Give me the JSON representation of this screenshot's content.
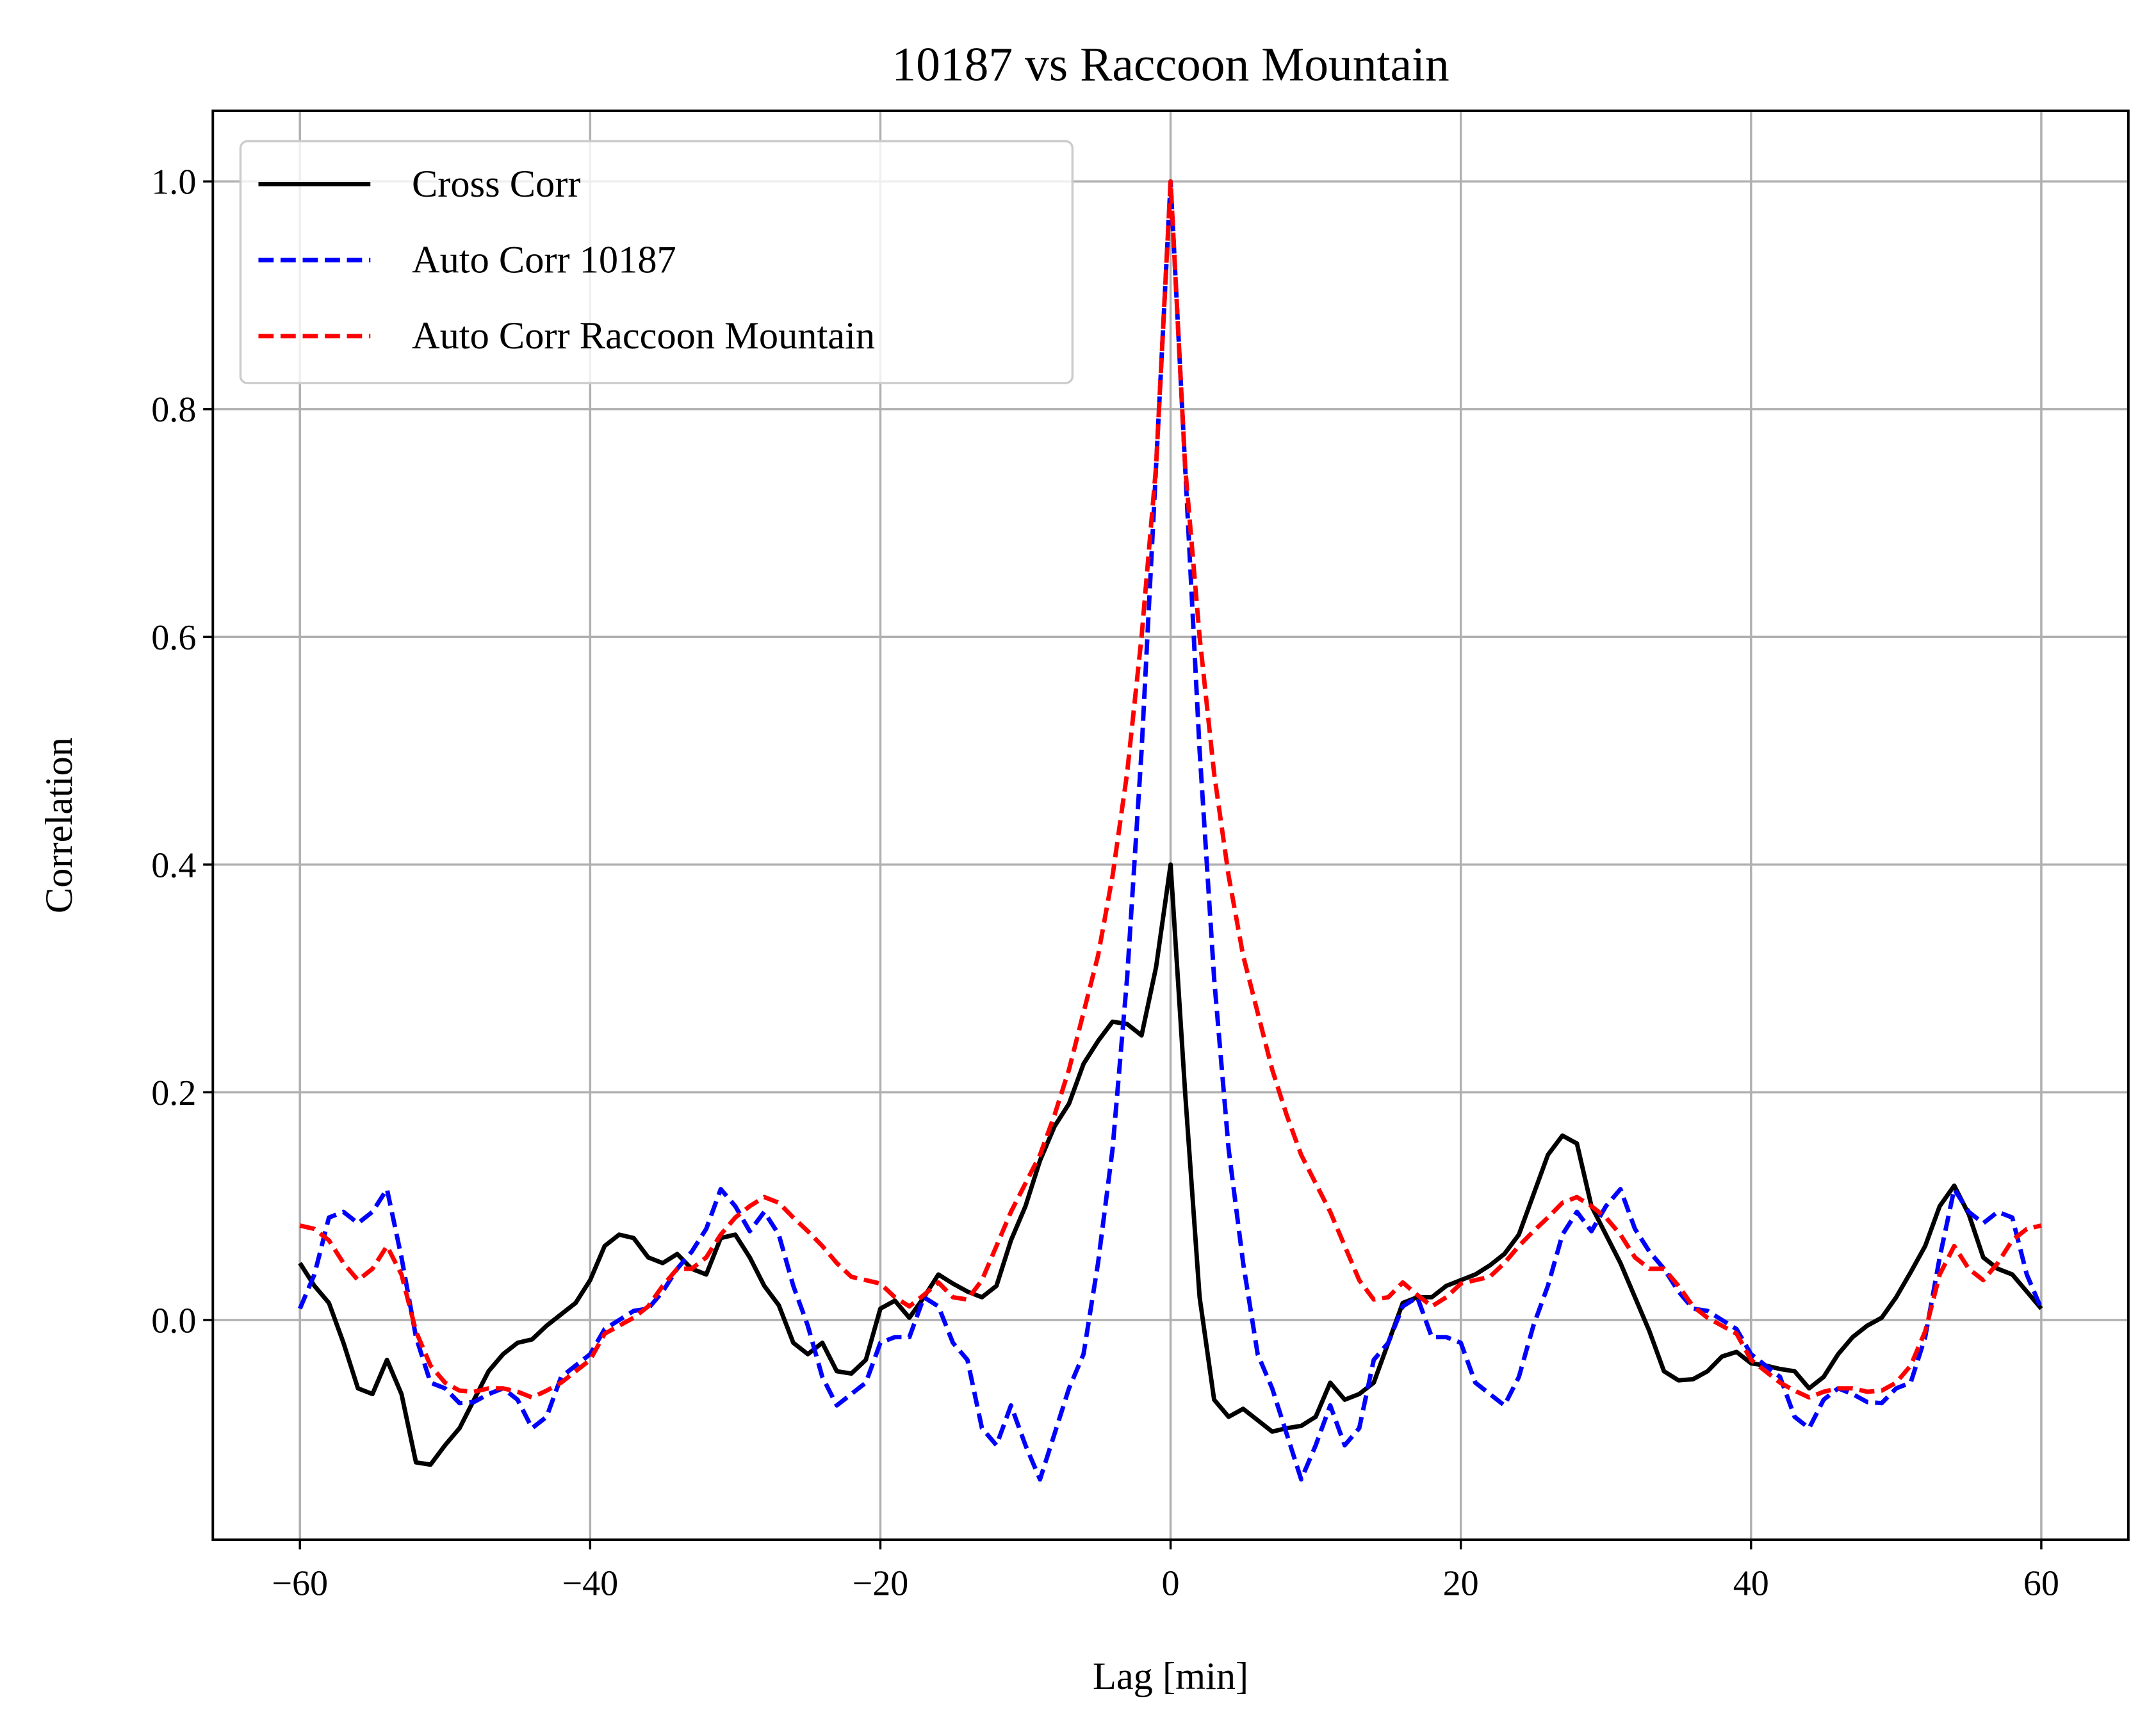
{
  "chart_data": {
    "type": "line",
    "title": "10187 vs Raccoon Mountain",
    "xlabel": "Lag [min]",
    "ylabel": "Correlation",
    "x": [
      -60,
      -59,
      -58,
      -57,
      -56,
      -55,
      -54,
      -53,
      -52,
      -51,
      -50,
      -49,
      -48,
      -47,
      -46,
      -45,
      -44,
      -43,
      -42,
      -41,
      -40,
      -39,
      -38,
      -37,
      -36,
      -35,
      -34,
      -33,
      -32,
      -31,
      -30,
      -29,
      -28,
      -27,
      -26,
      -25,
      -24,
      -23,
      -22,
      -21,
      -20,
      -19,
      -18,
      -17,
      -16,
      -15,
      -14,
      -13,
      -12,
      -11,
      -10,
      -9,
      -8,
      -7,
      -6,
      -5,
      -4,
      -3,
      -2,
      -1,
      0,
      1,
      2,
      3,
      4,
      5,
      6,
      7,
      8,
      9,
      10,
      11,
      12,
      13,
      14,
      15,
      16,
      17,
      18,
      19,
      20,
      21,
      22,
      23,
      24,
      25,
      26,
      27,
      28,
      29,
      30,
      31,
      32,
      33,
      34,
      35,
      36,
      37,
      38,
      39,
      40,
      41,
      42,
      43,
      44,
      45,
      46,
      47,
      48,
      49,
      50,
      51,
      52,
      53,
      54,
      55,
      56,
      57,
      58,
      59,
      60
    ],
    "series": [
      {
        "name": "Cross Corr",
        "color": "#000000",
        "linestyle": "solid",
        "values": [
          0.05,
          0.03,
          0.015,
          -0.02,
          -0.06,
          -0.065,
          -0.035,
          -0.065,
          -0.125,
          -0.127,
          -0.11,
          -0.095,
          -0.07,
          -0.045,
          -0.03,
          -0.02,
          -0.017,
          -0.005,
          0.005,
          0.015,
          0.035,
          0.065,
          0.075,
          0.072,
          0.055,
          0.05,
          0.058,
          0.045,
          0.04,
          0.072,
          0.075,
          0.055,
          0.03,
          0.013,
          -0.02,
          -0.03,
          -0.02,
          -0.045,
          -0.047,
          -0.035,
          0.01,
          0.017,
          0.002,
          0.02,
          0.04,
          0.032,
          0.025,
          0.02,
          0.03,
          0.07,
          0.1,
          0.14,
          0.17,
          0.19,
          0.225,
          0.245,
          0.262,
          0.26,
          0.25,
          0.31,
          0.4,
          0.2,
          0.02,
          -0.07,
          -0.085,
          -0.078,
          -0.088,
          -0.098,
          -0.095,
          -0.093,
          -0.085,
          -0.055,
          -0.07,
          -0.065,
          -0.055,
          -0.02,
          0.015,
          0.02,
          0.02,
          0.03,
          0.035,
          0.04,
          0.048,
          0.058,
          0.075,
          0.11,
          0.145,
          0.162,
          0.155,
          0.1,
          0.075,
          0.05,
          0.02,
          -0.01,
          -0.045,
          -0.053,
          -0.052,
          -0.045,
          -0.032,
          -0.028,
          -0.038,
          -0.04,
          -0.043,
          -0.045,
          -0.06,
          -0.05,
          -0.03,
          -0.015,
          -0.005,
          0.002,
          0.02,
          0.042,
          0.065,
          0.1,
          0.118,
          0.093,
          0.055,
          0.045,
          0.04,
          0.025,
          0.01
        ]
      },
      {
        "name": "Auto Corr 10187",
        "color": "#0000ff",
        "linestyle": "dashed",
        "values": [
          0.01,
          0.04,
          0.09,
          0.095,
          0.085,
          0.095,
          0.115,
          0.055,
          -0.015,
          -0.055,
          -0.06,
          -0.073,
          -0.072,
          -0.065,
          -0.06,
          -0.07,
          -0.095,
          -0.085,
          -0.05,
          -0.04,
          -0.03,
          -0.008,
          0.0,
          0.008,
          0.01,
          0.025,
          0.045,
          0.06,
          0.08,
          0.115,
          0.1,
          0.078,
          0.095,
          0.075,
          0.03,
          -0.005,
          -0.05,
          -0.075,
          -0.065,
          -0.055,
          -0.02,
          -0.015,
          -0.015,
          0.02,
          0.012,
          -0.02,
          -0.035,
          -0.095,
          -0.11,
          -0.075,
          -0.11,
          -0.14,
          -0.1,
          -0.06,
          -0.03,
          0.05,
          0.15,
          0.3,
          0.5,
          0.75,
          1.0,
          0.75,
          0.5,
          0.3,
          0.15,
          0.05,
          -0.03,
          -0.06,
          -0.1,
          -0.14,
          -0.11,
          -0.075,
          -0.11,
          -0.095,
          -0.035,
          -0.02,
          0.012,
          0.02,
          -0.015,
          -0.015,
          -0.02,
          -0.055,
          -0.065,
          -0.075,
          -0.05,
          -0.005,
          0.03,
          0.075,
          0.095,
          0.078,
          0.1,
          0.115,
          0.08,
          0.06,
          0.045,
          0.025,
          0.01,
          0.008,
          0.0,
          -0.008,
          -0.03,
          -0.04,
          -0.05,
          -0.085,
          -0.095,
          -0.07,
          -0.06,
          -0.065,
          -0.072,
          -0.073,
          -0.06,
          -0.055,
          -0.015,
          0.055,
          0.115,
          0.095,
          0.085,
          0.095,
          0.09,
          0.04,
          0.01
        ]
      },
      {
        "name": "Auto Corr Raccoon Mountain",
        "color": "#ff0000",
        "linestyle": "dashed",
        "values": [
          0.083,
          0.08,
          0.07,
          0.05,
          0.035,
          0.045,
          0.065,
          0.04,
          -0.01,
          -0.04,
          -0.055,
          -0.062,
          -0.063,
          -0.06,
          -0.06,
          -0.063,
          -0.068,
          -0.062,
          -0.055,
          -0.045,
          -0.035,
          -0.012,
          -0.005,
          0.002,
          0.012,
          0.03,
          0.045,
          0.045,
          0.055,
          0.075,
          0.09,
          0.1,
          0.108,
          0.103,
          0.09,
          0.078,
          0.065,
          0.05,
          0.038,
          0.035,
          0.032,
          0.02,
          0.012,
          0.022,
          0.033,
          0.02,
          0.018,
          0.035,
          0.065,
          0.095,
          0.12,
          0.145,
          0.18,
          0.22,
          0.27,
          0.32,
          0.39,
          0.48,
          0.6,
          0.75,
          1.0,
          0.75,
          0.6,
          0.48,
          0.39,
          0.32,
          0.27,
          0.22,
          0.18,
          0.145,
          0.12,
          0.095,
          0.065,
          0.035,
          0.018,
          0.02,
          0.033,
          0.022,
          0.012,
          0.02,
          0.032,
          0.035,
          0.038,
          0.05,
          0.065,
          0.078,
          0.09,
          0.103,
          0.108,
          0.1,
          0.09,
          0.075,
          0.055,
          0.045,
          0.045,
          0.03,
          0.012,
          0.002,
          -0.005,
          -0.012,
          -0.035,
          -0.045,
          -0.055,
          -0.062,
          -0.068,
          -0.063,
          -0.06,
          -0.06,
          -0.063,
          -0.062,
          -0.055,
          -0.04,
          -0.01,
          0.04,
          0.065,
          0.045,
          0.035,
          0.05,
          0.07,
          0.08,
          0.083
        ]
      }
    ],
    "xlim": [
      -66,
      66
    ],
    "ylim": [
      -0.193,
      1.062
    ],
    "xticks": [
      {
        "value": -60,
        "label": "−60"
      },
      {
        "value": -40,
        "label": "−40"
      },
      {
        "value": -20,
        "label": "−20"
      },
      0,
      20,
      40,
      60
    ],
    "yticks": [
      {
        "value": 0,
        "label": "0.0"
      },
      0.2,
      0.4,
      0.6,
      0.8,
      {
        "value": 1,
        "label": "1.0"
      }
    ],
    "grid": true,
    "legend": "upper left"
  }
}
